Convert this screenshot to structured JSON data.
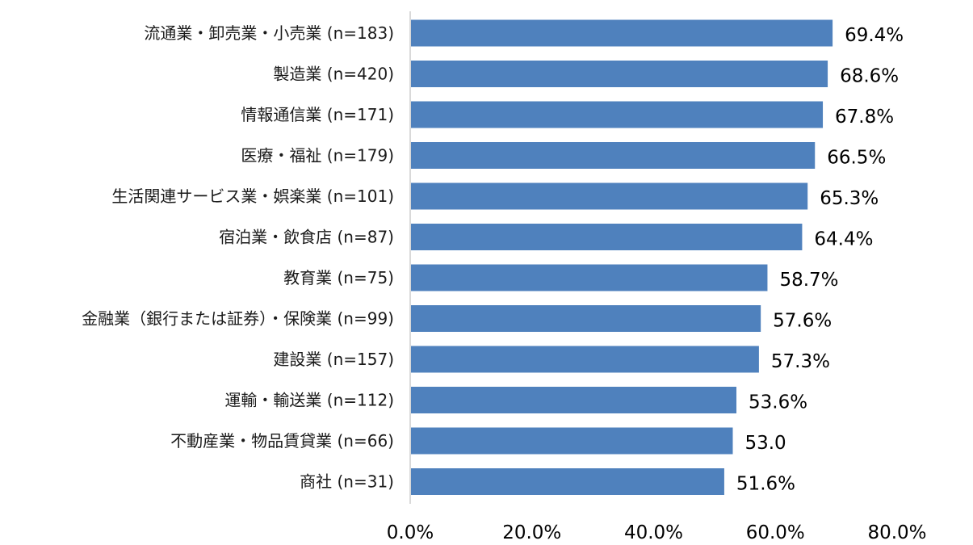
{
  "chart_data": {
    "type": "bar",
    "orientation": "horizontal",
    "categories": [
      "流通業・卸売業・小売業 (n=183)",
      "製造業 (n=420)",
      "情報通信業 (n=171)",
      "医療・福祉 (n=179)",
      "生活関連サービス業・娯楽業 (n=101)",
      "宿泊業・飲食店 (n=87)",
      "教育業 (n=75)",
      "金融業（銀行または証券）・保険業 (n=99)",
      "建設業 (n=157)",
      "運輸・輸送業 (n=112)",
      "不動産業・物品賃貸業 (n=66)",
      "商社 (n=31)"
    ],
    "values": [
      69.4,
      68.6,
      67.8,
      66.5,
      65.3,
      64.4,
      58.7,
      57.6,
      57.3,
      53.6,
      53.0,
      51.6
    ],
    "data_labels": [
      "69.4%",
      "68.6%",
      "67.8%",
      "66.5%",
      "65.3%",
      "64.4%",
      "58.7%",
      "57.6%",
      "57.3%",
      "53.6%",
      "53.0",
      "51.6%"
    ],
    "xlim": [
      0,
      80
    ],
    "x_ticks": [
      0,
      20,
      40,
      60,
      80
    ],
    "x_tick_labels": [
      "0.0%",
      "20.0%",
      "40.0%",
      "60.0%",
      "80.0%"
    ],
    "title": "",
    "xlabel": "",
    "ylabel": "",
    "grid": false,
    "legend": "none",
    "bar_color": "#4f81bd",
    "axis_color": "#d9d9d9"
  }
}
